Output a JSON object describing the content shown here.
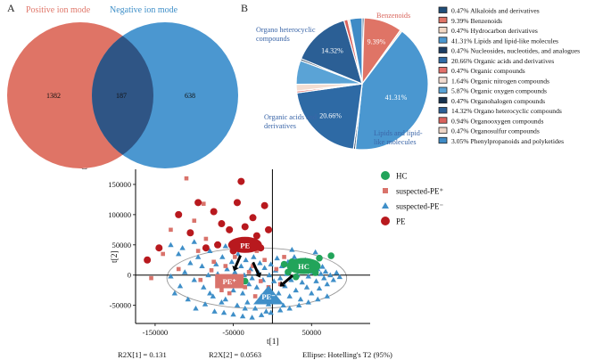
{
  "panels": {
    "a": "A",
    "b": "B",
    "c": "C"
  },
  "venn": {
    "positive_label": "Positive ion mode",
    "negative_label": "Negative ion mode",
    "positive_only": "1382",
    "overlap": "187",
    "negative_only": "638",
    "colors": {
      "positive": "#df7466",
      "negative": "#4b97d0",
      "overlap": "#2f5585"
    }
  },
  "pie": {
    "callouts": {
      "organo_heterocyclic": [
        "Organo heterocyclic",
        "compounds"
      ],
      "benzenoids": "Benzenoids",
      "organic_acids": [
        "Organic acids and",
        "derivatives"
      ],
      "lipids": [
        "Lipids and lipid-",
        "like molecules"
      ]
    }
  },
  "chart_data": [
    {
      "type": "pie",
      "title": "",
      "slices": [
        {
          "name": "Alkaloids and derivatives",
          "value": 0.47,
          "pct_label": "0.47%",
          "color": "#1f4e79"
        },
        {
          "name": "Benzenoids",
          "value": 9.39,
          "pct_label": "9.39%",
          "color": "#df7466"
        },
        {
          "name": "Hydrocarbon derivatives",
          "value": 0.47,
          "pct_label": "0.47%",
          "color": "#f2d9c6"
        },
        {
          "name": "Lipids and lipid-like molecules",
          "value": 41.31,
          "pct_label": "41.31%",
          "color": "#4a97d0"
        },
        {
          "name": "Nucleosides, nucleotides, and analogues",
          "value": 0.47,
          "pct_label": "0.47%",
          "color": "#1c3d63"
        },
        {
          "name": "Organic acids and derivatives",
          "value": 20.66,
          "pct_label": "20.66%",
          "color": "#2e6aa5"
        },
        {
          "name": "Organic compounds",
          "value": 0.47,
          "pct_label": "0.47%",
          "color": "#e3706a"
        },
        {
          "name": "Organic nitrogen compounds",
          "value": 1.64,
          "pct_label": "1.64%",
          "color": "#f3ddd2"
        },
        {
          "name": "Organic oxygen compounds",
          "value": 5.87,
          "pct_label": "5.87%",
          "color": "#5aa3d6"
        },
        {
          "name": "Organohalogen compounds",
          "value": 0.47,
          "pct_label": "0.47%",
          "color": "#17324f"
        },
        {
          "name": "Organo heterocyclic compounds",
          "value": 14.32,
          "pct_label": "14.32%",
          "color": "#2b5f95"
        },
        {
          "name": "Organooxygen compounds",
          "value": 0.94,
          "pct_label": "0.94%",
          "color": "#d9625c"
        },
        {
          "name": "Organosulfur compounds",
          "value": 0.47,
          "pct_label": "0.47%",
          "color": "#eed6c8"
        },
        {
          "name": "Phenylpropanoids and polyketides",
          "value": 3.05,
          "pct_label": "3.05%",
          "color": "#3f8bc6"
        }
      ],
      "shown_pct_labels": [
        "9.39%",
        "14.32%",
        "20.66%",
        "41.31%"
      ]
    },
    {
      "type": "scatter",
      "title": "",
      "xlabel": "t[1]",
      "ylabel": "t[2]",
      "xlim": [
        -175000,
        125000
      ],
      "ylim": [
        -80000,
        175000
      ],
      "x_ticks": [
        -150000,
        -50000,
        50000
      ],
      "x_tick_labels": [
        "-150000",
        "-50000",
        "50000"
      ],
      "y_ticks": [
        150000,
        100000,
        50000,
        0,
        -50000
      ],
      "y_tick_labels": [
        "150000",
        "100000",
        "50000",
        "0",
        "-50000"
      ],
      "series": [
        {
          "name": "HC",
          "marker": "circle",
          "color": "#22a45a",
          "points": [
            [
              15000,
              18000
            ],
            [
              25000,
              22000
            ],
            [
              30000,
              -3000
            ],
            [
              45000,
              10000
            ],
            [
              60000,
              28000
            ],
            [
              75000,
              32000
            ],
            [
              55000,
              4000
            ],
            [
              -35000,
              -10000
            ],
            [
              40000,
              20000
            ],
            [
              20000,
              5000
            ]
          ]
        },
        {
          "name": "suspected-PE⁺",
          "marker": "square",
          "color": "#d9736b",
          "points": [
            [
              -155000,
              -5000
            ],
            [
              -130000,
              75000
            ],
            [
              -140000,
              35000
            ],
            [
              -120000,
              10000
            ],
            [
              -100000,
              90000
            ],
            [
              -95000,
              40000
            ],
            [
              -85000,
              60000
            ],
            [
              -78000,
              8000
            ],
            [
              -75000,
              22000
            ],
            [
              -70000,
              -12000
            ],
            [
              -60000,
              15000
            ],
            [
              -55000,
              -30000
            ],
            [
              -48000,
              30000
            ],
            [
              -45000,
              -5000
            ],
            [
              -40000,
              55000
            ],
            [
              -35000,
              -20000
            ],
            [
              -30000,
              5000
            ],
            [
              -25000,
              15000
            ],
            [
              -22000,
              -35000
            ],
            [
              -15000,
              -10000
            ],
            [
              -10000,
              25000
            ],
            [
              -5000,
              -20000
            ],
            [
              5000,
              10000
            ],
            [
              10000,
              -15000
            ],
            [
              -110000,
              160000
            ],
            [
              -92000,
              -8000
            ],
            [
              -65000,
              -25000
            ],
            [
              -20000,
              40000
            ],
            [
              15000,
              30000
            ],
            [
              -88000,
              118000
            ]
          ]
        },
        {
          "name": "suspected-PE⁻",
          "marker": "triangle",
          "color": "#3f8fc8",
          "points": [
            [
              -120000,
              35000
            ],
            [
              -112000,
              5000
            ],
            [
              -105000,
              20000
            ],
            [
              -100000,
              -8000
            ],
            [
              -95000,
              30000
            ],
            [
              -90000,
              15000
            ],
            [
              -88000,
              -20000
            ],
            [
              -82000,
              0
            ],
            [
              -80000,
              40000
            ],
            [
              -76000,
              -35000
            ],
            [
              -72000,
              18000
            ],
            [
              -70000,
              2000
            ],
            [
              -66000,
              -15000
            ],
            [
              -64000,
              30000
            ],
            [
              -60000,
              -40000
            ],
            [
              -58000,
              10000
            ],
            [
              -55000,
              -5000
            ],
            [
              -52000,
              22000
            ],
            [
              -50000,
              -25000
            ],
            [
              -48000,
              5000
            ],
            [
              -45000,
              -50000
            ],
            [
              -44000,
              35000
            ],
            [
              -42000,
              -10000
            ],
            [
              -40000,
              15000
            ],
            [
              -38000,
              -30000
            ],
            [
              -36000,
              0
            ],
            [
              -34000,
              25000
            ],
            [
              -32000,
              -45000
            ],
            [
              -30000,
              -15000
            ],
            [
              -28000,
              10000
            ],
            [
              -26000,
              -5000
            ],
            [
              -24000,
              30000
            ],
            [
              -22000,
              -55000
            ],
            [
              -20000,
              -20000
            ],
            [
              -18000,
              5000
            ],
            [
              -16000,
              20000
            ],
            [
              -14000,
              -35000
            ],
            [
              -12000,
              -8000
            ],
            [
              -10000,
              12000
            ],
            [
              -8000,
              -60000
            ],
            [
              -6000,
              -25000
            ],
            [
              -4000,
              0
            ],
            [
              -2000,
              18000
            ],
            [
              0,
              -40000
            ],
            [
              2000,
              -10000
            ],
            [
              4000,
              8000
            ],
            [
              6000,
              28000
            ],
            [
              8000,
              -30000
            ],
            [
              10000,
              -5000
            ],
            [
              12000,
              15000
            ],
            [
              14000,
              -50000
            ],
            [
              16000,
              -18000
            ],
            [
              18000,
              2000
            ],
            [
              20000,
              22000
            ],
            [
              22000,
              -35000
            ],
            [
              24000,
              -8000
            ],
            [
              26000,
              12000
            ],
            [
              28000,
              30000
            ],
            [
              30000,
              -25000
            ],
            [
              32000,
              0
            ],
            [
              34000,
              18000
            ],
            [
              36000,
              -40000
            ],
            [
              38000,
              -12000
            ],
            [
              40000,
              8000
            ],
            [
              42000,
              25000
            ],
            [
              44000,
              -20000
            ],
            [
              46000,
              -2000
            ],
            [
              48000,
              15000
            ],
            [
              50000,
              -30000
            ],
            [
              52000,
              5000
            ],
            [
              54000,
              20000
            ],
            [
              56000,
              -10000
            ],
            [
              58000,
              10000
            ],
            [
              60000,
              -22000
            ],
            [
              62000,
              2000
            ],
            [
              64000,
              14000
            ],
            [
              66000,
              -5000
            ],
            [
              68000,
              6000
            ],
            [
              70000,
              -15000
            ],
            [
              74000,
              0
            ],
            [
              78000,
              -8000
            ],
            [
              82000,
              4000
            ],
            [
              86000,
              -3000
            ],
            [
              -130000,
              -2000
            ],
            [
              -125000,
              -30000
            ],
            [
              -118000,
              -18000
            ],
            [
              -108000,
              -40000
            ],
            [
              -98000,
              -55000
            ],
            [
              -86000,
              -48000
            ],
            [
              -74000,
              -60000
            ],
            [
              -62000,
              -62000
            ],
            [
              -50000,
              -65000
            ],
            [
              -38000,
              -68000
            ],
            [
              -26000,
              -70000
            ],
            [
              -14000,
              -66000
            ],
            [
              -2000,
              -62000
            ],
            [
              10000,
              -58000
            ],
            [
              22000,
              -55000
            ],
            [
              34000,
              -50000
            ],
            [
              46000,
              -45000
            ],
            [
              58000,
              -40000
            ],
            [
              70000,
              -35000
            ],
            [
              -130000,
              50000
            ],
            [
              -115000,
              45000
            ],
            [
              -100000,
              55000
            ],
            [
              -60000,
              48000
            ],
            [
              -15000,
              45000
            ],
            [
              25000,
              42000
            ],
            [
              55000,
              38000
            ],
            [
              -80000,
              -30000
            ],
            [
              -65000,
              -45000
            ],
            [
              -35000,
              -55000
            ],
            [
              -5000,
              -48000
            ]
          ]
        },
        {
          "name": "PE",
          "marker": "circle",
          "color": "#b8191e",
          "points": [
            [
              -160000,
              25000
            ],
            [
              -145000,
              45000
            ],
            [
              -120000,
              100000
            ],
            [
              -105000,
              70000
            ],
            [
              -95000,
              120000
            ],
            [
              -85000,
              45000
            ],
            [
              -75000,
              105000
            ],
            [
              -70000,
              50000
            ],
            [
              -65000,
              85000
            ],
            [
              -55000,
              75000
            ],
            [
              -50000,
              40000
            ],
            [
              -45000,
              120000
            ],
            [
              -40000,
              155000
            ],
            [
              -35000,
              80000
            ],
            [
              -30000,
              55000
            ],
            [
              -25000,
              95000
            ],
            [
              -20000,
              65000
            ],
            [
              -15000,
              45000
            ],
            [
              -10000,
              115000
            ],
            [
              -5000,
              75000
            ]
          ]
        }
      ],
      "clusters": [
        {
          "label": "PE",
          "cx": -35000,
          "cy": 50000,
          "color": "#b8191e"
        },
        {
          "label": "PE⁺",
          "cx": -55000,
          "cy": -10000,
          "color": "#d9736b"
        },
        {
          "label": "PE⁻",
          "cx": -5000,
          "cy": -35000,
          "color": "#3f8fc8"
        },
        {
          "label": "HC",
          "cx": 40000,
          "cy": 15000,
          "color": "#22a45a"
        }
      ],
      "legend_position": "top-right",
      "ellipse": "Hotelling's T2 (95%)"
    }
  ],
  "scatter_footer": {
    "r2x1": "R2X[1] = 0.131",
    "r2x2": "R2X[2] = 0.0563",
    "ellipse": "Ellipse:  Hotelling's T2 (95%)"
  }
}
